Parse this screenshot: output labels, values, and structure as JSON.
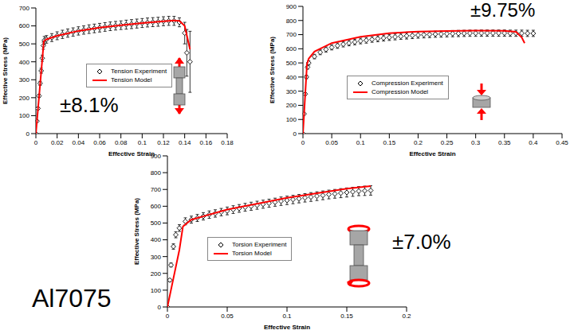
{
  "title": "Al7075",
  "chart_data": [
    {
      "type": "scatter",
      "x_label": "Effective Strain",
      "y_label": "Effective Stress (MPa)",
      "annotation": "±8.1%",
      "xlim": [
        0,
        0.18
      ],
      "xticks": [
        0,
        0.02,
        0.04,
        0.06,
        0.08,
        0.1,
        0.12,
        0.14,
        0.16,
        0.18
      ],
      "ylim": [
        0,
        700
      ],
      "yticks": [
        0,
        100,
        200,
        300,
        400,
        500,
        600,
        700
      ],
      "grid": false,
      "series": [
        {
          "name": "Tension Experiment",
          "color": "#000000",
          "marker": "diamond",
          "x": [
            0,
            0.001,
            0.002,
            0.003,
            0.004,
            0.005,
            0.006,
            0.007,
            0.008,
            0.01,
            0.015,
            0.02,
            0.025,
            0.03,
            0.035,
            0.04,
            0.045,
            0.05,
            0.055,
            0.06,
            0.065,
            0.07,
            0.075,
            0.08,
            0.085,
            0.09,
            0.095,
            0.1,
            0.105,
            0.11,
            0.115,
            0.12,
            0.125,
            0.13,
            0.135,
            0.14,
            0.142,
            0.145
          ],
          "values": [
            0,
            70,
            140,
            210,
            280,
            350,
            420,
            490,
            520,
            525,
            535,
            545,
            553,
            560,
            566,
            572,
            577,
            582,
            586,
            590,
            594,
            598,
            601,
            604,
            607,
            610,
            613,
            616,
            619,
            621,
            623,
            626,
            628,
            628,
            620,
            560,
            450,
            400
          ],
          "y_error": [
            0,
            3,
            6,
            9,
            11,
            14,
            17,
            20,
            21,
            21,
            22,
            22,
            23,
            23,
            23,
            23,
            23,
            24,
            24,
            24,
            24,
            24,
            24,
            24,
            25,
            25,
            25,
            25,
            25,
            25,
            25,
            25,
            25,
            25,
            25,
            60,
            130,
            170
          ]
        },
        {
          "name": "Tension Model",
          "color": "#ff0000",
          "line_style": "solid",
          "x": [
            0,
            0.0075,
            0.01,
            0.02,
            0.04,
            0.06,
            0.08,
            0.1,
            0.12,
            0.13,
            0.135,
            0.14,
            0.145
          ],
          "values": [
            0,
            515,
            525,
            545,
            572,
            590,
            604,
            616,
            626,
            630,
            628,
            600,
            470
          ]
        }
      ]
    },
    {
      "type": "scatter",
      "x_label": "Effective Strain",
      "y_label": "Effective Stress (MPa)",
      "annotation": "±9.75%",
      "xlim": [
        0,
        0.45
      ],
      "xticks": [
        0,
        0.05,
        0.1,
        0.15,
        0.2,
        0.25,
        0.3,
        0.35,
        0.4,
        0.45
      ],
      "ylim": [
        0,
        900
      ],
      "yticks": [
        0,
        100,
        200,
        300,
        400,
        500,
        600,
        700,
        800,
        900
      ],
      "grid": false,
      "series": [
        {
          "name": "Compression Experiment",
          "color": "#000000",
          "marker": "diamond",
          "x": [
            0,
            0.002,
            0.004,
            0.006,
            0.008,
            0.01,
            0.02,
            0.03,
            0.04,
            0.05,
            0.06,
            0.07,
            0.08,
            0.09,
            0.1,
            0.11,
            0.12,
            0.13,
            0.14,
            0.15,
            0.16,
            0.17,
            0.18,
            0.19,
            0.2,
            0.21,
            0.22,
            0.23,
            0.24,
            0.25,
            0.26,
            0.27,
            0.28,
            0.29,
            0.3,
            0.31,
            0.32,
            0.33,
            0.34,
            0.35,
            0.36,
            0.37,
            0.38,
            0.39,
            0.4
          ],
          "values": [
            0,
            140,
            280,
            400,
            470,
            500,
            545,
            575,
            595,
            610,
            622,
            632,
            640,
            648,
            655,
            660,
            666,
            671,
            676,
            680,
            684,
            688,
            691,
            694,
            697,
            699,
            701,
            703,
            704,
            706,
            707,
            708,
            709,
            710,
            710,
            711,
            711,
            711,
            711,
            711,
            710,
            710,
            710,
            709,
            709
          ],
          "y_error": [
            0,
            4,
            8,
            12,
            14,
            15,
            16,
            17,
            18,
            18,
            19,
            19,
            19,
            20,
            20,
            20,
            20,
            21,
            21,
            21,
            21,
            21,
            22,
            22,
            22,
            22,
            22,
            22,
            22,
            22,
            22,
            22,
            22,
            22,
            22,
            22,
            22,
            22,
            22,
            22,
            22,
            22,
            22,
            22,
            22
          ]
        },
        {
          "name": "Compression Model",
          "color": "#ff0000",
          "line_style": "solid",
          "x": [
            0,
            0.007,
            0.01,
            0.02,
            0.05,
            0.1,
            0.15,
            0.2,
            0.25,
            0.3,
            0.35,
            0.37,
            0.38,
            0.385
          ],
          "values": [
            0,
            490,
            530,
            580,
            640,
            685,
            710,
            722,
            726,
            728,
            727,
            720,
            680,
            640
          ]
        }
      ]
    },
    {
      "type": "scatter",
      "x_label": "Effective Strain",
      "y_label": "Effective Stress (MPa)",
      "annotation": "±7.0%",
      "xlim": [
        0,
        0.2
      ],
      "xticks": [
        0,
        0.05,
        0.1,
        0.15,
        0.2
      ],
      "ylim": [
        0,
        900
      ],
      "yticks": [
        0,
        100,
        200,
        300,
        400,
        500,
        600,
        700,
        800,
        900
      ],
      "grid": false,
      "series": [
        {
          "name": "Torsion Experiment",
          "color": "#000000",
          "marker": "diamond",
          "x": [
            0,
            0.002,
            0.003,
            0.005,
            0.007,
            0.01,
            0.015,
            0.02,
            0.025,
            0.03,
            0.035,
            0.04,
            0.045,
            0.05,
            0.055,
            0.06,
            0.065,
            0.07,
            0.075,
            0.08,
            0.085,
            0.09,
            0.095,
            0.1,
            0.105,
            0.11,
            0.115,
            0.12,
            0.125,
            0.13,
            0.135,
            0.14,
            0.145,
            0.15,
            0.155,
            0.16,
            0.165,
            0.17
          ],
          "values": [
            0,
            160,
            250,
            360,
            430,
            470,
            510,
            520,
            530,
            540,
            550,
            557,
            565,
            572,
            580,
            587,
            594,
            600,
            606,
            612,
            618,
            624,
            630,
            635,
            640,
            645,
            650,
            655,
            660,
            665,
            670,
            674,
            678,
            682,
            686,
            690,
            692,
            694
          ],
          "y_error": [
            0,
            8,
            12,
            16,
            18,
            20,
            21,
            21,
            21,
            22,
            22,
            22,
            22,
            23,
            23,
            23,
            23,
            24,
            24,
            24,
            24,
            24,
            25,
            25,
            25,
            25,
            25,
            26,
            26,
            26,
            26,
            26,
            27,
            27,
            27,
            27,
            28,
            28
          ]
        },
        {
          "name": "Torsion Model",
          "color": "#ff0000",
          "line_style": "solid",
          "x": [
            0,
            0.005,
            0.01,
            0.013,
            0.02,
            0.05,
            0.1,
            0.15,
            0.17
          ],
          "values": [
            0,
            170,
            340,
            480,
            520,
            580,
            650,
            705,
            720
          ]
        }
      ]
    }
  ]
}
